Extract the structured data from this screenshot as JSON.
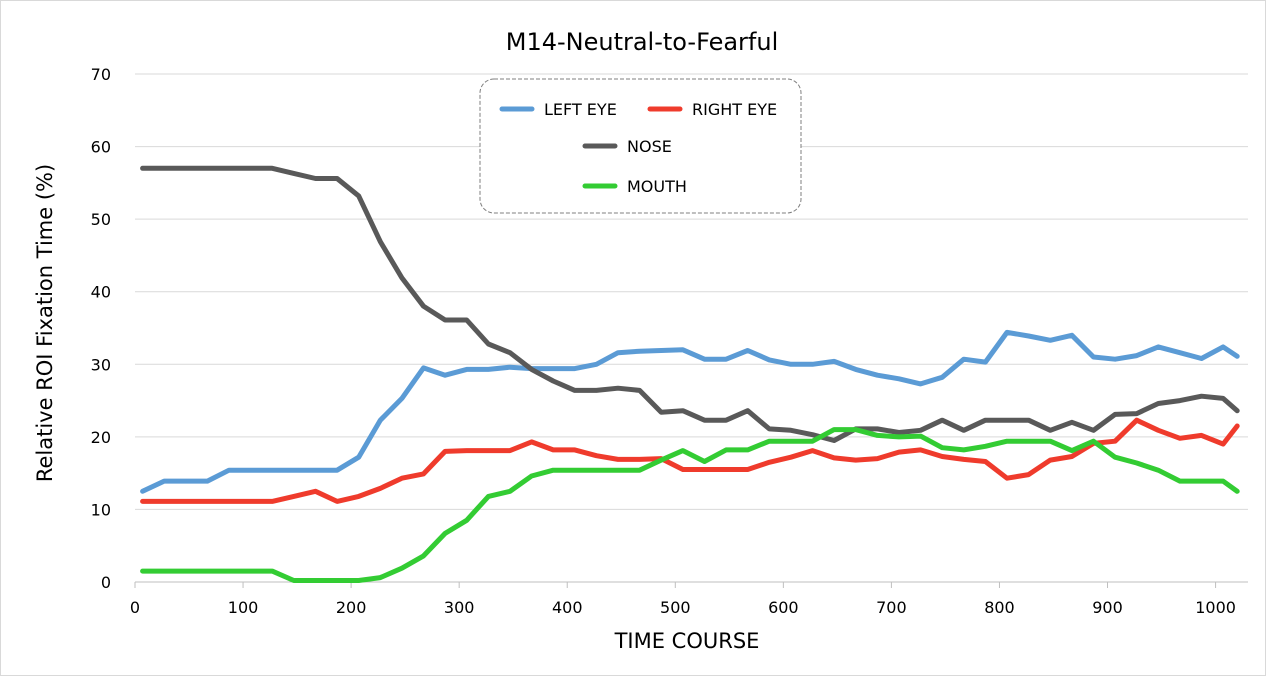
{
  "chart_data": {
    "type": "line",
    "title": "M14-Neutral-to-Fearful",
    "xlabel": "TIME  COURSE",
    "ylabel": "Relative  ROI  Fixation  Time  (%)",
    "xlim": [
      0,
      1030
    ],
    "ylim": [
      0,
      70
    ],
    "xticks": [
      0,
      100,
      200,
      300,
      400,
      500,
      600,
      700,
      800,
      900,
      1000
    ],
    "yticks": [
      0,
      10,
      20,
      30,
      40,
      50,
      60,
      70
    ],
    "grid": "horizontal",
    "legend": "top-center",
    "x": [
      7,
      27,
      47,
      67,
      87,
      107,
      127,
      147,
      167,
      187,
      207,
      227,
      247,
      267,
      287,
      307,
      327,
      347,
      367,
      387,
      407,
      427,
      447,
      467,
      487,
      507,
      527,
      547,
      567,
      587,
      607,
      627,
      647,
      667,
      687,
      707,
      727,
      747,
      767,
      787,
      807,
      827,
      847,
      867,
      887,
      907,
      927,
      947,
      967,
      987,
      1007,
      1020
    ],
    "series": [
      {
        "name": "LEFT EYE",
        "color": "#5b9bd5",
        "values": [
          12.5,
          13.9,
          13.9,
          13.9,
          15.4,
          15.4,
          15.4,
          15.4,
          15.4,
          15.4,
          17.2,
          22.3,
          25.3,
          29.5,
          28.5,
          29.3,
          29.3,
          29.6,
          29.4,
          29.4,
          29.4,
          30.0,
          31.6,
          31.8,
          31.9,
          32.0,
          30.7,
          30.7,
          31.9,
          30.6,
          30.0,
          30.0,
          30.4,
          29.3,
          28.5,
          28.0,
          27.3,
          28.2,
          30.7,
          30.3,
          34.4,
          33.9,
          33.3,
          34.0,
          31.0,
          30.7,
          31.2,
          32.4,
          31.6,
          30.8,
          32.4,
          31.1
        ]
      },
      {
        "name": "RIGHT EYE",
        "color": "#ef3b2c",
        "values": [
          11.1,
          11.1,
          11.1,
          11.1,
          11.1,
          11.1,
          11.1,
          11.8,
          12.5,
          11.1,
          11.8,
          12.9,
          14.3,
          14.9,
          18.0,
          18.1,
          18.1,
          18.1,
          19.3,
          18.2,
          18.2,
          17.4,
          16.9,
          16.9,
          17.0,
          15.5,
          15.5,
          15.5,
          15.5,
          16.5,
          17.2,
          18.1,
          17.1,
          16.8,
          17.0,
          17.9,
          18.2,
          17.3,
          16.9,
          16.6,
          14.3,
          14.8,
          16.8,
          17.3,
          19.1,
          19.4,
          22.3,
          20.9,
          19.8,
          20.2,
          19.0,
          21.5
        ]
      },
      {
        "name": "NOSE",
        "color": "#595959",
        "values": [
          57.0,
          57.0,
          57.0,
          57.0,
          57.0,
          57.0,
          57.0,
          56.3,
          55.6,
          55.6,
          53.2,
          46.9,
          41.9,
          38.0,
          36.1,
          36.1,
          32.8,
          31.6,
          29.3,
          27.7,
          26.4,
          26.4,
          26.7,
          26.4,
          23.4,
          23.6,
          22.3,
          22.3,
          23.6,
          21.1,
          20.9,
          20.3,
          19.5,
          21.1,
          21.1,
          20.6,
          20.9,
          22.3,
          20.9,
          22.3,
          22.3,
          22.3,
          20.9,
          22.0,
          20.9,
          23.1,
          23.2,
          24.6,
          25.0,
          25.6,
          25.3,
          23.6
        ]
      },
      {
        "name": "MOUTH",
        "color": "#33cc33",
        "values": [
          1.5,
          1.5,
          1.5,
          1.5,
          1.5,
          1.5,
          1.5,
          0.2,
          0.2,
          0.2,
          0.2,
          0.6,
          1.9,
          3.6,
          6.7,
          8.5,
          11.8,
          12.5,
          14.6,
          15.4,
          15.4,
          15.4,
          15.4,
          15.4,
          16.8,
          18.1,
          16.6,
          18.2,
          18.2,
          19.4,
          19.4,
          19.4,
          21.0,
          21.0,
          20.2,
          20.0,
          20.1,
          18.5,
          18.2,
          18.7,
          19.4,
          19.4,
          19.4,
          18.1,
          19.4,
          17.2,
          16.4,
          15.4,
          13.9,
          13.9,
          13.9,
          12.5
        ]
      }
    ]
  }
}
